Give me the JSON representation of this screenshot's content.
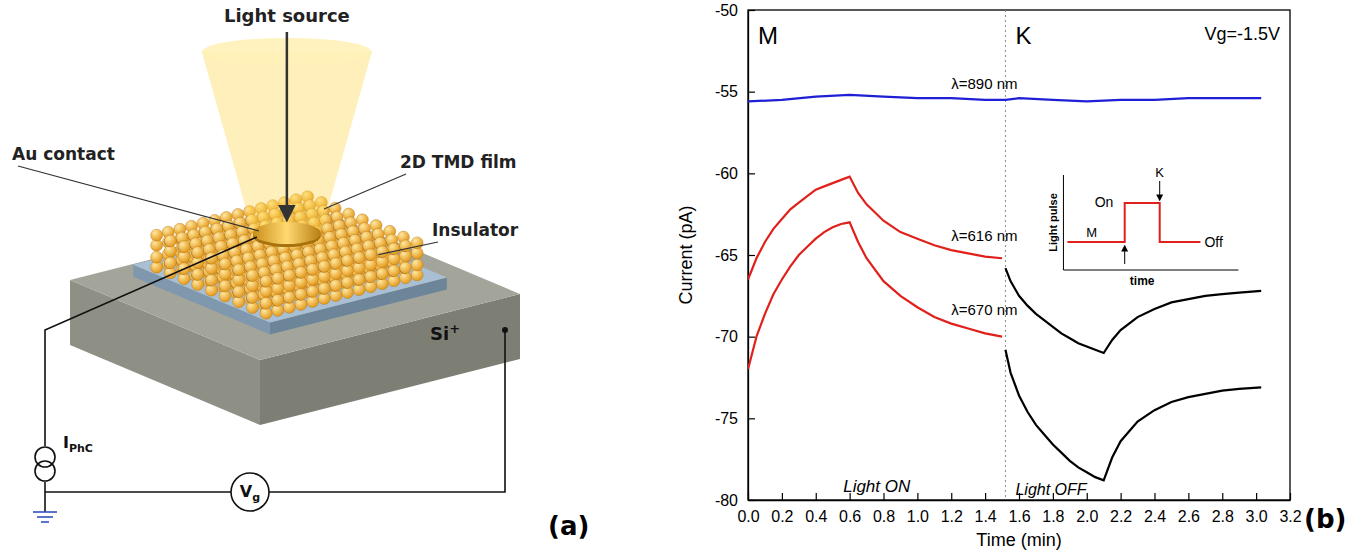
{
  "diagram": {
    "panel_label": "(a)",
    "light_source": "Light source",
    "au_contact": "Au contact",
    "film": "2D TMD film",
    "insulator": "Insulator",
    "substrate": {
      "main": "Si",
      "sup": "+"
    },
    "current_source": {
      "main": "I",
      "sub": "PhC"
    },
    "gate_voltage": {
      "main": "V",
      "sub": "g"
    }
  },
  "chart_data": {
    "type": "line",
    "panel_label": "(b)",
    "gate": "Vg=-1.5V",
    "xlabel": "Time (min)",
    "ylabel": "Current (pA)",
    "xlim": [
      0,
      3.2
    ],
    "ylim": [
      -80,
      -50
    ],
    "xticks": [
      {
        "value": 0,
        "label": "0.0"
      },
      0.2,
      0.4,
      0.6,
      0.8,
      {
        "value": 1,
        "label": "1.0"
      },
      1.2,
      1.4,
      1.6,
      1.8,
      {
        "value": 2,
        "label": "2.0"
      },
      2.2,
      2.4,
      2.6,
      2.8,
      {
        "value": 3,
        "label": "3.0"
      },
      3.2
    ],
    "yticks": [
      -80,
      -75,
      -70,
      -65,
      -60,
      -55,
      -50
    ],
    "grid": false,
    "phases": [
      {
        "label": "M",
        "start": 0,
        "text": "Light ON"
      },
      {
        "label": "K",
        "start": 1.52,
        "text": "Light OFF"
      }
    ],
    "inset": {
      "ylabel": "Light pulse",
      "xlabel": "time",
      "on": "On",
      "off": "Off",
      "markers": [
        "M",
        "K"
      ]
    },
    "series": [
      {
        "name": "λ=890 nm",
        "color": "#1f1fd6",
        "x": [
          0,
          0.2,
          0.4,
          0.6,
          0.8,
          1.0,
          1.2,
          1.4,
          1.52,
          1.6,
          1.8,
          2.0,
          2.2,
          2.4,
          2.6,
          2.8,
          3.03
        ],
        "values": [
          -55.6,
          -55.5,
          -55.3,
          -55.2,
          -55.3,
          -55.4,
          -55.4,
          -55.5,
          -55.5,
          -55.4,
          -55.5,
          -55.6,
          -55.5,
          -55.5,
          -55.4,
          -55.4,
          -55.4
        ]
      },
      {
        "name": "λ=616 nm",
        "color": "#e0211b",
        "x": [
          0,
          0.05,
          0.1,
          0.15,
          0.2,
          0.25,
          0.3,
          0.35,
          0.4,
          0.45,
          0.5,
          0.55,
          0.6,
          0.65,
          0.7,
          0.8,
          0.9,
          1.0,
          1.1,
          1.2,
          1.3,
          1.4,
          1.5
        ],
        "values": [
          -66.5,
          -65.2,
          -64.2,
          -63.4,
          -62.8,
          -62.2,
          -61.8,
          -61.4,
          -61.0,
          -60.8,
          -60.6,
          -60.4,
          -60.2,
          -61.2,
          -61.9,
          -62.9,
          -63.6,
          -64.0,
          -64.4,
          -64.7,
          -64.9,
          -65.1,
          -65.2
        ]
      },
      {
        "name": "λ=670 nm",
        "color": "#e0211b",
        "x": [
          0,
          0.05,
          0.1,
          0.15,
          0.2,
          0.25,
          0.3,
          0.35,
          0.4,
          0.45,
          0.5,
          0.55,
          0.6,
          0.65,
          0.7,
          0.8,
          0.9,
          1.0,
          1.1,
          1.2,
          1.3,
          1.4,
          1.5
        ],
        "values": [
          -72,
          -70.0,
          -68.6,
          -67.4,
          -66.5,
          -65.7,
          -65.0,
          -64.5,
          -64.0,
          -63.6,
          -63.3,
          -63.1,
          -63.0,
          -64.2,
          -65.2,
          -66.6,
          -67.5,
          -68.2,
          -68.8,
          -69.2,
          -69.5,
          -69.8,
          -70.0
        ]
      },
      {
        "color": "#000000",
        "x": [
          1.52,
          1.55,
          1.6,
          1.65,
          1.7,
          1.75,
          1.8,
          1.85,
          1.9,
          1.95,
          2.0,
          2.05,
          2.1,
          2.15,
          2.2,
          2.3,
          2.4,
          2.5,
          2.6,
          2.7,
          2.8,
          2.9,
          3.03
        ],
        "values": [
          -65.8,
          -66.6,
          -67.5,
          -68.1,
          -68.6,
          -69.0,
          -69.4,
          -69.8,
          -70.1,
          -70.4,
          -70.6,
          -70.8,
          -71.0,
          -70.2,
          -69.6,
          -68.8,
          -68.3,
          -67.9,
          -67.7,
          -67.5,
          -67.4,
          -67.3,
          -67.2
        ]
      },
      {
        "color": "#000000",
        "x": [
          1.52,
          1.55,
          1.6,
          1.65,
          1.7,
          1.75,
          1.8,
          1.85,
          1.9,
          1.95,
          2.0,
          2.05,
          2.1,
          2.15,
          2.2,
          2.3,
          2.4,
          2.5,
          2.6,
          2.7,
          2.8,
          2.9,
          3.03
        ],
        "values": [
          -70.8,
          -72.2,
          -73.6,
          -74.6,
          -75.4,
          -76.0,
          -76.6,
          -77.1,
          -77.6,
          -78.0,
          -78.3,
          -78.6,
          -78.8,
          -77.4,
          -76.4,
          -75.2,
          -74.5,
          -74.0,
          -73.7,
          -73.5,
          -73.3,
          -73.2,
          -73.1
        ]
      }
    ]
  }
}
